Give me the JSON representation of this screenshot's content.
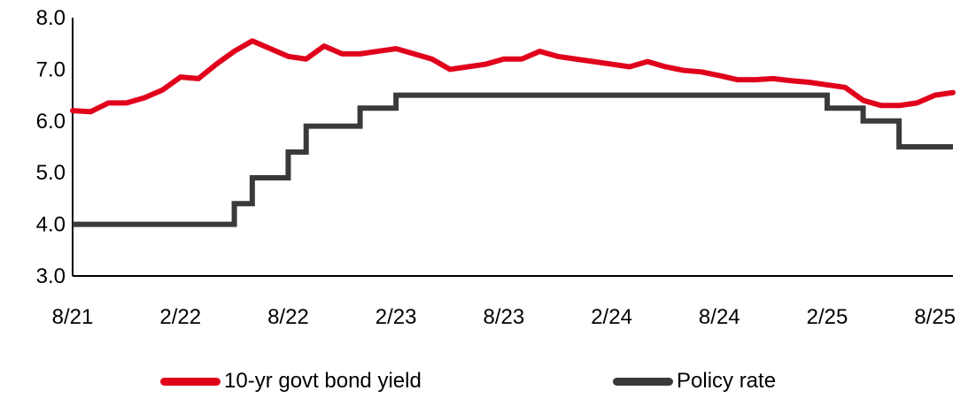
{
  "chart_data": {
    "type": "line",
    "title": "",
    "xlabel": "",
    "ylabel": "",
    "x_tick_labels": [
      "8/21",
      "2/22",
      "8/22",
      "2/23",
      "8/23",
      "2/24",
      "8/24",
      "2/25",
      "8/25"
    ],
    "y_tick_labels": [
      "3.0",
      "4.0",
      "5.0",
      "6.0",
      "7.0",
      "8.0"
    ],
    "ylim": [
      3.0,
      8.0
    ],
    "xlim": [
      "2021-08",
      "2025-09"
    ],
    "grid": false,
    "legend_position": "bottom",
    "series": [
      {
        "name": "10-yr govt bond yield",
        "color": "#e0001b",
        "style": "line",
        "points": [
          [
            "2021-08",
            6.2
          ],
          [
            "2021-09",
            6.18
          ],
          [
            "2021-10",
            6.35
          ],
          [
            "2021-11",
            6.35
          ],
          [
            "2021-12",
            6.45
          ],
          [
            "2022-01",
            6.6
          ],
          [
            "2022-02",
            6.85
          ],
          [
            "2022-03",
            6.82
          ],
          [
            "2022-04",
            7.1
          ],
          [
            "2022-05",
            7.35
          ],
          [
            "2022-06",
            7.55
          ],
          [
            "2022-07",
            7.4
          ],
          [
            "2022-08",
            7.25
          ],
          [
            "2022-09",
            7.2
          ],
          [
            "2022-10",
            7.45
          ],
          [
            "2022-11",
            7.3
          ],
          [
            "2022-12",
            7.3
          ],
          [
            "2023-01",
            7.35
          ],
          [
            "2023-02",
            7.4
          ],
          [
            "2023-03",
            7.3
          ],
          [
            "2023-04",
            7.2
          ],
          [
            "2023-05",
            7.0
          ],
          [
            "2023-06",
            7.05
          ],
          [
            "2023-07",
            7.1
          ],
          [
            "2023-08",
            7.2
          ],
          [
            "2023-09",
            7.2
          ],
          [
            "2023-10",
            7.35
          ],
          [
            "2023-11",
            7.25
          ],
          [
            "2023-12",
            7.2
          ],
          [
            "2024-01",
            7.15
          ],
          [
            "2024-02",
            7.1
          ],
          [
            "2024-03",
            7.05
          ],
          [
            "2024-04",
            7.15
          ],
          [
            "2024-05",
            7.05
          ],
          [
            "2024-06",
            6.98
          ],
          [
            "2024-07",
            6.95
          ],
          [
            "2024-08",
            6.88
          ],
          [
            "2024-09",
            6.8
          ],
          [
            "2024-10",
            6.8
          ],
          [
            "2024-11",
            6.82
          ],
          [
            "2024-12",
            6.78
          ],
          [
            "2025-01",
            6.75
          ],
          [
            "2025-02",
            6.7
          ],
          [
            "2025-03",
            6.65
          ],
          [
            "2025-04",
            6.4
          ],
          [
            "2025-05",
            6.3
          ],
          [
            "2025-06",
            6.3
          ],
          [
            "2025-07",
            6.35
          ],
          [
            "2025-08",
            6.5
          ],
          [
            "2025-09",
            6.55
          ]
        ]
      },
      {
        "name": "Policy rate",
        "color": "#3a3a3a",
        "style": "step",
        "points": [
          [
            "2021-08",
            4.0
          ],
          [
            "2022-05",
            4.4
          ],
          [
            "2022-06",
            4.9
          ],
          [
            "2022-08",
            5.4
          ],
          [
            "2022-09",
            5.9
          ],
          [
            "2022-12",
            6.25
          ],
          [
            "2023-02",
            6.5
          ],
          [
            "2025-02",
            6.25
          ],
          [
            "2025-04",
            6.0
          ],
          [
            "2025-06",
            5.5
          ],
          [
            "2025-09",
            5.5
          ]
        ]
      }
    ]
  }
}
